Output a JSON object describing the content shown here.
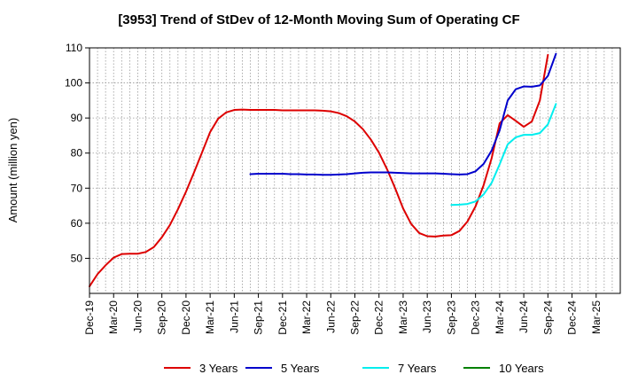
{
  "chart_data": {
    "type": "line",
    "title": "[3953]  Trend of StDev of 12-Month Moving Sum of Operating CF",
    "ylabel": "Amount (million yen)",
    "xlabel": "",
    "ylim": [
      40,
      110
    ],
    "yticks": [
      50,
      60,
      70,
      80,
      90,
      100,
      110
    ],
    "grid": true,
    "legend_position": "bottom",
    "x_tick_labels": [
      "Dec-19",
      "Mar-20",
      "Jun-20",
      "Sep-20",
      "Dec-20",
      "Mar-21",
      "Jun-21",
      "Sep-21",
      "Dec-21",
      "Mar-22",
      "Jun-22",
      "Sep-22",
      "Dec-22",
      "Mar-23",
      "Jun-23",
      "Sep-23",
      "Dec-23",
      "Mar-24",
      "Jun-24",
      "Sep-24",
      "Dec-24",
      "Mar-25"
    ],
    "x_months": [
      "Dec-19",
      "Jan-20",
      "Feb-20",
      "Mar-20",
      "Apr-20",
      "May-20",
      "Jun-20",
      "Jul-20",
      "Aug-20",
      "Sep-20",
      "Oct-20",
      "Nov-20",
      "Dec-20",
      "Jan-21",
      "Feb-21",
      "Mar-21",
      "Apr-21",
      "May-21",
      "Jun-21",
      "Jul-21",
      "Aug-21",
      "Sep-21",
      "Oct-21",
      "Nov-21",
      "Dec-21",
      "Jan-22",
      "Feb-22",
      "Mar-22",
      "Apr-22",
      "May-22",
      "Jun-22",
      "Jul-22",
      "Aug-22",
      "Sep-22",
      "Oct-22",
      "Nov-22",
      "Dec-22",
      "Jan-23",
      "Feb-23",
      "Mar-23",
      "Apr-23",
      "May-23",
      "Jun-23",
      "Jul-23",
      "Aug-23",
      "Sep-23",
      "Oct-23",
      "Nov-23",
      "Dec-23",
      "Jan-24",
      "Feb-24",
      "Mar-24",
      "Apr-24",
      "May-24",
      "Jun-24",
      "Jul-24",
      "Aug-24",
      "Sep-24",
      "Oct-24",
      "Nov-24",
      "Dec-24",
      "Jan-25",
      "Feb-25",
      "Mar-25",
      "Apr-25",
      "May-25",
      "Jun-25"
    ],
    "series": [
      {
        "name": "3 Years",
        "color": "#dd0000",
        "start": "Dec-19",
        "values": [
          42.0,
          45.5,
          48.0,
          50.2,
          51.2,
          51.3,
          51.3,
          51.8,
          53.2,
          56.0,
          59.5,
          64.0,
          69.0,
          74.5,
          80.2,
          86.0,
          89.8,
          91.6,
          92.3,
          92.4,
          92.3,
          92.3,
          92.3,
          92.3,
          92.2,
          92.2,
          92.2,
          92.2,
          92.2,
          92.1,
          91.9,
          91.4,
          90.5,
          89.0,
          86.8,
          83.8,
          80.1,
          75.4,
          70.0,
          64.2,
          59.8,
          57.2,
          56.3,
          56.2,
          56.5,
          56.6,
          57.8,
          60.5,
          64.8,
          70.8,
          78.5,
          88.5,
          90.8,
          89.2,
          87.5,
          89.0,
          95.0,
          108.0
        ]
      },
      {
        "name": "5 Years",
        "color": "#0000cc",
        "start": "Aug-21",
        "values": [
          74.0,
          74.1,
          74.1,
          74.1,
          74.1,
          74.0,
          74.0,
          73.9,
          73.9,
          73.8,
          73.8,
          73.9,
          74.0,
          74.2,
          74.4,
          74.5,
          74.5,
          74.5,
          74.4,
          74.3,
          74.2,
          74.2,
          74.2,
          74.2,
          74.1,
          74.0,
          73.9,
          74.0,
          74.8,
          76.9,
          80.7,
          86.5,
          95.0,
          98.2,
          99.0,
          98.9,
          99.3,
          102.0,
          108.3
        ]
      },
      {
        "name": "7 Years",
        "color": "#00eeee",
        "start": "Sep-23",
        "values": [
          65.2,
          65.3,
          65.5,
          66.2,
          68.2,
          71.5,
          76.8,
          82.5,
          84.5,
          85.2,
          85.2,
          85.7,
          88.2,
          94.0
        ]
      },
      {
        "name": "10 Years",
        "color": "#008000",
        "start": "Sep-24",
        "values": []
      }
    ]
  }
}
